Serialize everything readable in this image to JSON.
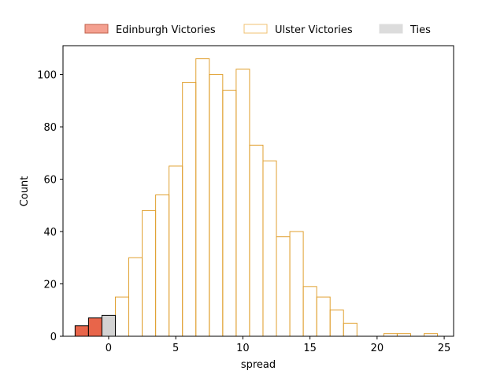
{
  "chart_data": {
    "type": "bar",
    "title": "",
    "xlabel": "spread",
    "ylabel": "Count",
    "xlim": [
      -3.4,
      25.7
    ],
    "ylim": [
      0,
      111
    ],
    "xticks": [
      0,
      5,
      10,
      15,
      20,
      25
    ],
    "yticks": [
      0,
      20,
      40,
      60,
      80,
      100
    ],
    "bin_width": 1,
    "legend_position": "top-center",
    "series": [
      {
        "name": "Edinburgh Victories",
        "fill": "#e8654a",
        "edge": "#000000",
        "bins": [
          {
            "x0": -2.5,
            "x1": -1.5,
            "count": 4
          },
          {
            "x0": -1.5,
            "x1": -0.5,
            "count": 7
          }
        ]
      },
      {
        "name": "Ulster Victories",
        "fill": "none",
        "edge": "#e0a030",
        "bins": [
          {
            "x0": 0.5,
            "x1": 1.5,
            "count": 15
          },
          {
            "x0": 1.5,
            "x1": 2.5,
            "count": 30
          },
          {
            "x0": 2.5,
            "x1": 3.5,
            "count": 48
          },
          {
            "x0": 3.5,
            "x1": 4.5,
            "count": 54
          },
          {
            "x0": 4.5,
            "x1": 5.5,
            "count": 65
          },
          {
            "x0": 5.5,
            "x1": 6.5,
            "count": 97
          },
          {
            "x0": 6.5,
            "x1": 7.5,
            "count": 106
          },
          {
            "x0": 7.5,
            "x1": 8.5,
            "count": 100
          },
          {
            "x0": 8.5,
            "x1": 9.5,
            "count": 94
          },
          {
            "x0": 9.5,
            "x1": 10.5,
            "count": 102
          },
          {
            "x0": 10.5,
            "x1": 11.5,
            "count": 73
          },
          {
            "x0": 11.5,
            "x1": 12.5,
            "count": 67
          },
          {
            "x0": 12.5,
            "x1": 13.5,
            "count": 38
          },
          {
            "x0": 13.5,
            "x1": 14.5,
            "count": 40
          },
          {
            "x0": 14.5,
            "x1": 15.5,
            "count": 19
          },
          {
            "x0": 15.5,
            "x1": 16.5,
            "count": 15
          },
          {
            "x0": 16.5,
            "x1": 17.5,
            "count": 10
          },
          {
            "x0": 17.5,
            "x1": 18.5,
            "count": 5
          },
          {
            "x0": 20.5,
            "x1": 21.5,
            "count": 1
          },
          {
            "x0": 21.5,
            "x1": 22.5,
            "count": 1
          },
          {
            "x0": 23.5,
            "x1": 24.5,
            "count": 1
          }
        ]
      },
      {
        "name": "Ties",
        "fill": "#d3d3d3",
        "edge": "#000000",
        "bins": [
          {
            "x0": -0.5,
            "x1": 0.5,
            "count": 8
          }
        ]
      }
    ],
    "legend": [
      {
        "label": "Edinburgh Victories",
        "fill": "#f4a090",
        "edge": "#c0604a"
      },
      {
        "label": "Ulster Victories",
        "fill": "#ffffff",
        "edge": "#f0c070"
      },
      {
        "label": "Ties",
        "fill": "#dcdcdc",
        "edge": "#dcdcdc"
      }
    ]
  }
}
